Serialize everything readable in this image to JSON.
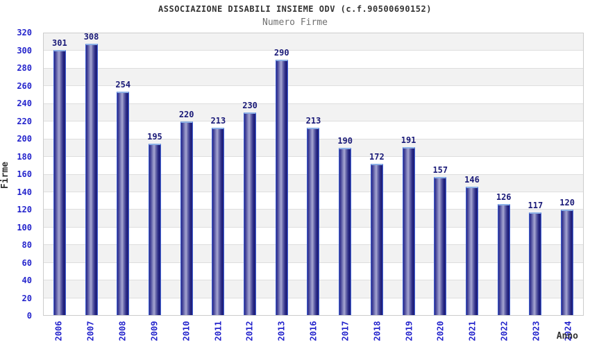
{
  "chart_data": {
    "type": "bar",
    "title": "ASSOCIAZIONE DISABILI INSIEME ODV (c.f.90500690152)",
    "subtitle": "Numero Firme",
    "xlabel": "Anno",
    "ylabel": "Firme",
    "categories": [
      "2006",
      "2007",
      "2008",
      "2009",
      "2010",
      "2011",
      "2012",
      "2013",
      "2016",
      "2017",
      "2018",
      "2019",
      "2020",
      "2021",
      "2022",
      "2023",
      "2024"
    ],
    "values": [
      301,
      308,
      254,
      195,
      220,
      213,
      230,
      290,
      213,
      190,
      172,
      191,
      157,
      146,
      126,
      117,
      120
    ],
    "ylim": [
      0,
      320
    ],
    "ytick_step": 20,
    "grid": true,
    "legend": "none",
    "colors": {
      "tick_label": "#2525cc",
      "value_label": "#1a1a78",
      "title": "#333333",
      "subtitle": "#707070",
      "band_gray": "#f2f2f2",
      "band_white": "#ffffff",
      "gridline": "#dedede",
      "plot_border": "#cccccc",
      "bar_dark": "#28288a",
      "bar_light": "#a6a6d2",
      "bar_edge": "#3f5fd0",
      "bar_cap": "#8cb0e6"
    }
  }
}
